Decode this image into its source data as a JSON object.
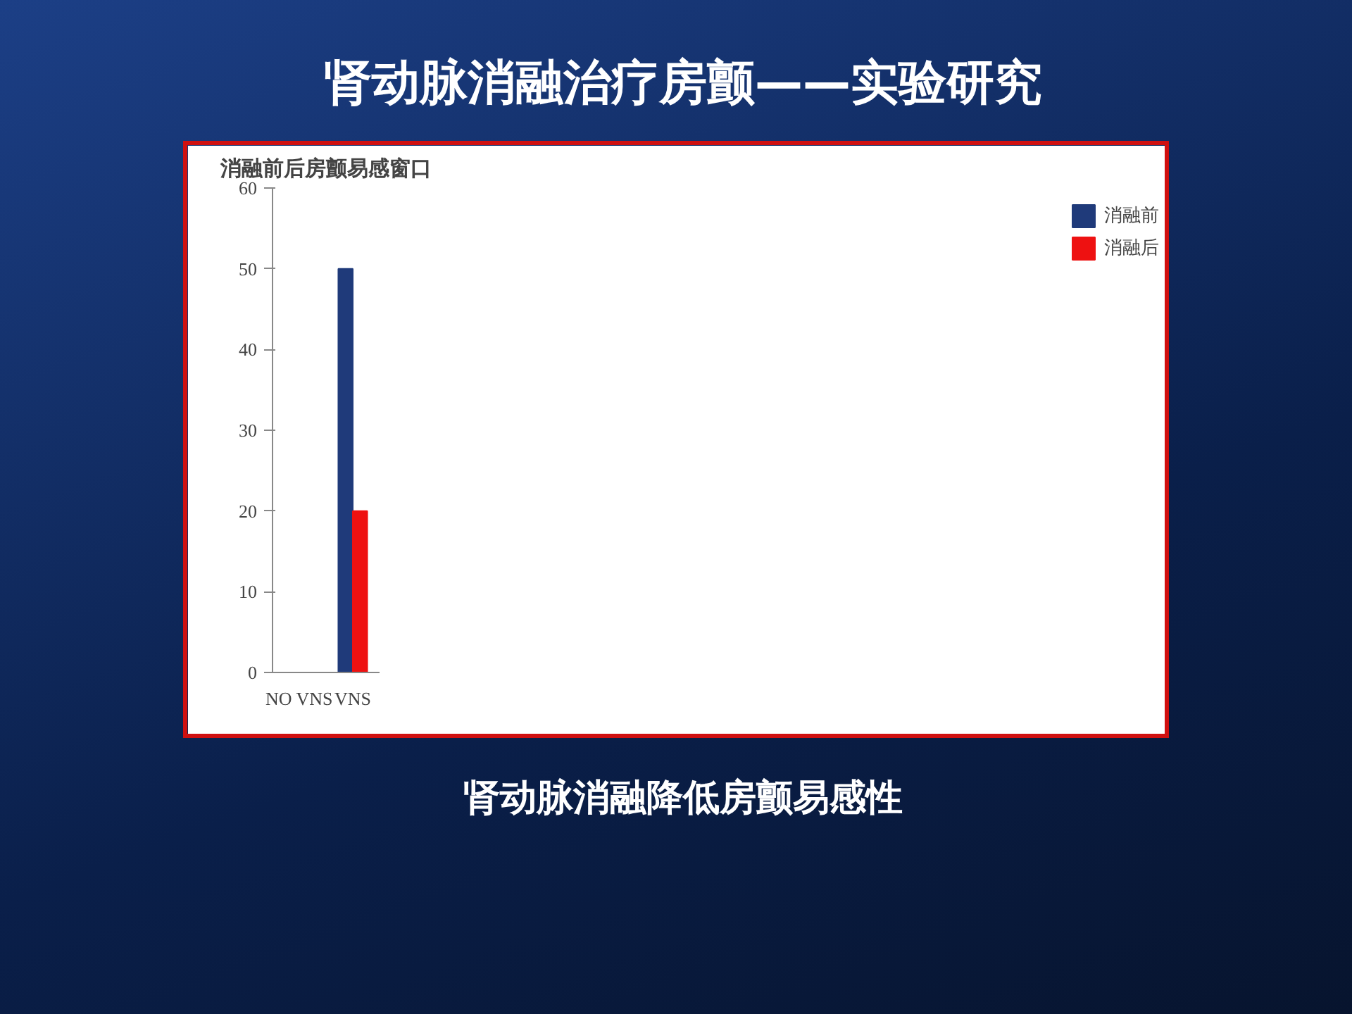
{
  "chart_data": {
    "type": "bar",
    "title": "肾动脉消融治疗房颤——实验研究",
    "subtitle": "消融前后房颤易感窗口",
    "annotations": [
      "肾动脉消融降低房颤易感性"
    ],
    "categories": [
      "NO VNS",
      "VNS"
    ],
    "series": [
      {
        "name": "消融前",
        "color": "#1f3a7a",
        "values": [
          0,
          50
        ]
      },
      {
        "name": "消融后",
        "color": "#ee1111",
        "values": [
          0,
          20
        ]
      }
    ],
    "ylim": [
      0,
      60
    ],
    "yticks": [
      0,
      10,
      20,
      30,
      40,
      50,
      60
    ],
    "legend": "right"
  }
}
